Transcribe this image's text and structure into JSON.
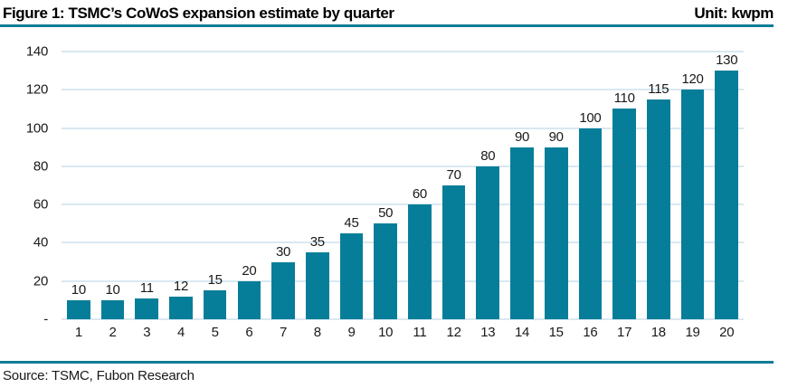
{
  "header": {
    "title": "Figure 1: TSMC’s CoWoS expansion estimate by quarter",
    "unit": "Unit: kwpm"
  },
  "footer": {
    "source": "Source: TSMC, Fubon Research"
  },
  "colors": {
    "bar": "#077E99",
    "rule": "#0C7D96",
    "gridline": "#D9E8F2",
    "text": "#1A1A1A"
  },
  "chart_data": {
    "type": "bar",
    "title": "Figure 1: TSMC’s CoWoS expansion estimate by quarter",
    "unit": "kwpm",
    "categories": [
      "1",
      "2",
      "3",
      "4",
      "5",
      "6",
      "7",
      "8",
      "9",
      "10",
      "11",
      "12",
      "13",
      "14",
      "15",
      "16",
      "17",
      "18",
      "19",
      "20"
    ],
    "values": [
      10,
      10,
      11,
      12,
      15,
      20,
      30,
      35,
      45,
      50,
      60,
      70,
      80,
      90,
      90,
      100,
      110,
      115,
      120,
      130
    ],
    "xlabel": "",
    "ylabel": "",
    "ylim": [
      0,
      140
    ],
    "ytick_step": 20,
    "ytick_labels": [
      "-",
      "20",
      "40",
      "60",
      "80",
      "100",
      "120",
      "140"
    ],
    "grid": true,
    "data_labels": true,
    "legend_position": "none"
  }
}
